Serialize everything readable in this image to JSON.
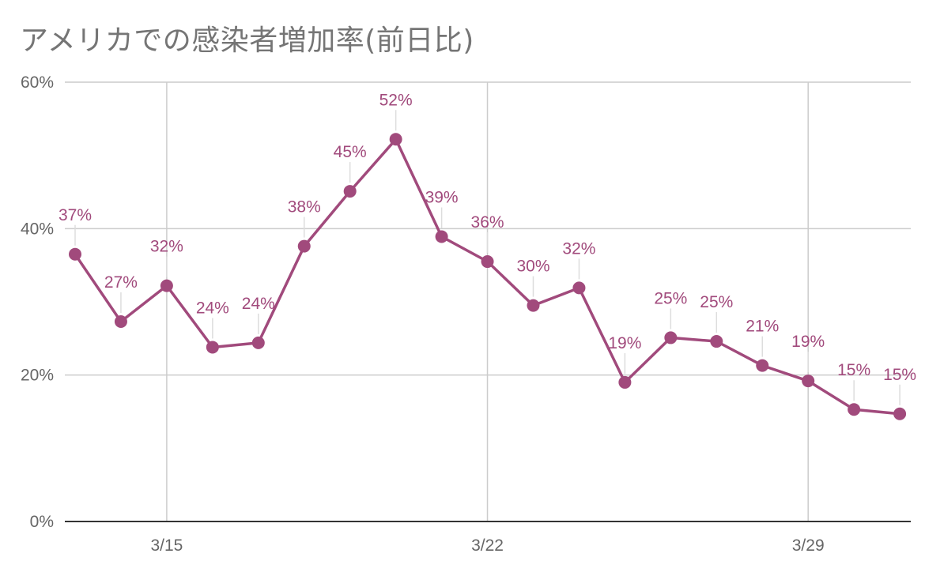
{
  "chart_data": {
    "type": "line",
    "title": "アメリカでの感染者増加率(前日比)",
    "xlabel": "",
    "ylabel": "",
    "x": [
      "3/13",
      "3/14",
      "3/15",
      "3/16",
      "3/17",
      "3/18",
      "3/19",
      "3/20",
      "3/21",
      "3/22",
      "3/23",
      "3/24",
      "3/25",
      "3/26",
      "3/27",
      "3/28",
      "3/29",
      "3/30",
      "3/31"
    ],
    "x_ticks": [
      "3/15",
      "3/22",
      "3/29"
    ],
    "y_ticks": [
      "0%",
      "20%",
      "40%",
      "60%"
    ],
    "ylim": [
      0,
      60
    ],
    "grid": true,
    "legend": "none",
    "series": [
      {
        "values": [
          36.5,
          27.3,
          32.2,
          23.8,
          24.4,
          37.6,
          45.1,
          52.2,
          38.9,
          35.5,
          29.5,
          31.9,
          19.0,
          25.1,
          24.6,
          21.3,
          19.2,
          15.3,
          14.7
        ],
        "labels": [
          "37%",
          "27%",
          "32%",
          "24%",
          "24%",
          "38%",
          "45%",
          "52%",
          "39%",
          "36%",
          "30%",
          "32%",
          "19%",
          "25%",
          "25%",
          "21%",
          "19%",
          "15%",
          "15%"
        ],
        "color": "#a14a7c"
      }
    ],
    "colors": {
      "title": "#757575",
      "grid": "#cccccc",
      "axis": "#333333",
      "tick_text": "#666666",
      "leader": "#dddddd"
    }
  }
}
